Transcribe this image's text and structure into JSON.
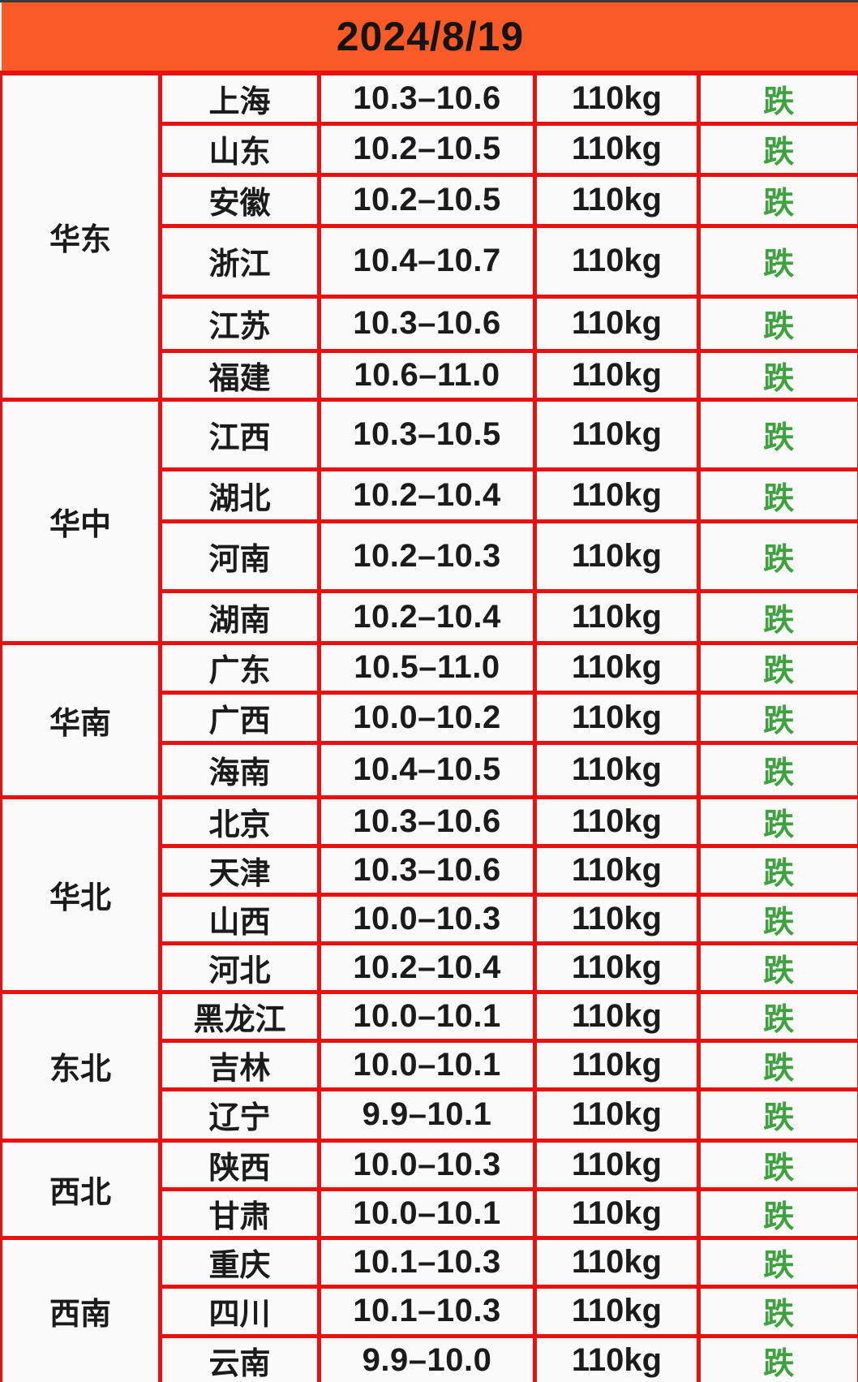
{
  "header": {
    "date": "2024/8/19"
  },
  "colors": {
    "header_orange": "#FA5A26",
    "border_red": "#EA1010",
    "status_green": "#3EA23E",
    "text_black": "#1B1B1B",
    "cell_bg": "#FBFAFA"
  },
  "table": {
    "regions": [
      {
        "name": "华东",
        "provinces": [
          {
            "name": "上海",
            "price": "10.3–10.6",
            "weight": "110kg",
            "status": "跌"
          },
          {
            "name": "山东",
            "price": "10.2–10.5",
            "weight": "110kg",
            "status": "跌"
          },
          {
            "name": "安徽",
            "price": "10.2–10.5",
            "weight": "110kg",
            "status": "跌"
          },
          {
            "name": "浙江",
            "price": "10.4–10.7",
            "weight": "110kg",
            "status": "跌"
          },
          {
            "name": "江苏",
            "price": "10.3–10.6",
            "weight": "110kg",
            "status": "跌"
          },
          {
            "name": "福建",
            "price": "10.6–11.0",
            "weight": "110kg",
            "status": "跌"
          }
        ]
      },
      {
        "name": "华中",
        "provinces": [
          {
            "name": "江西",
            "price": "10.3–10.5",
            "weight": "110kg",
            "status": "跌"
          },
          {
            "name": "湖北",
            "price": "10.2–10.4",
            "weight": "110kg",
            "status": "跌"
          },
          {
            "name": "河南",
            "price": "10.2–10.3",
            "weight": "110kg",
            "status": "跌"
          },
          {
            "name": "湖南",
            "price": "10.2–10.4",
            "weight": "110kg",
            "status": "跌"
          }
        ]
      },
      {
        "name": "华南",
        "provinces": [
          {
            "name": "广东",
            "price": "10.5–11.0",
            "weight": "110kg",
            "status": "跌"
          },
          {
            "name": "广西",
            "price": "10.0–10.2",
            "weight": "110kg",
            "status": "跌"
          },
          {
            "name": "海南",
            "price": "10.4–10.5",
            "weight": "110kg",
            "status": "跌"
          }
        ]
      },
      {
        "name": "华北",
        "provinces": [
          {
            "name": "北京",
            "price": "10.3–10.6",
            "weight": "110kg",
            "status": "跌"
          },
          {
            "name": "天津",
            "price": "10.3–10.6",
            "weight": "110kg",
            "status": "跌"
          },
          {
            "name": "山西",
            "price": "10.0–10.3",
            "weight": "110kg",
            "status": "跌"
          },
          {
            "name": "河北",
            "price": "10.2–10.4",
            "weight": "110kg",
            "status": "跌"
          }
        ]
      },
      {
        "name": "东北",
        "provinces": [
          {
            "name": "黑龙江",
            "price": "10.0–10.1",
            "weight": "110kg",
            "status": "跌"
          },
          {
            "name": "吉林",
            "price": "10.0–10.1",
            "weight": "110kg",
            "status": "跌"
          },
          {
            "name": "辽宁",
            "price": "9.9–10.1",
            "weight": "110kg",
            "status": "跌"
          }
        ]
      },
      {
        "name": "西北",
        "provinces": [
          {
            "name": "陕西",
            "price": "10.0–10.3",
            "weight": "110kg",
            "status": "跌"
          },
          {
            "name": "甘肃",
            "price": "10.0–10.1",
            "weight": "110kg",
            "status": "跌"
          }
        ]
      },
      {
        "name": "西南",
        "provinces": [
          {
            "name": "重庆",
            "price": "10.1–10.3",
            "weight": "110kg",
            "status": "跌"
          },
          {
            "name": "四川",
            "price": "10.1–10.3",
            "weight": "110kg",
            "status": "跌"
          },
          {
            "name": "云南",
            "price": "9.9–10.0",
            "weight": "110kg",
            "status": "跌"
          }
        ]
      }
    ]
  }
}
